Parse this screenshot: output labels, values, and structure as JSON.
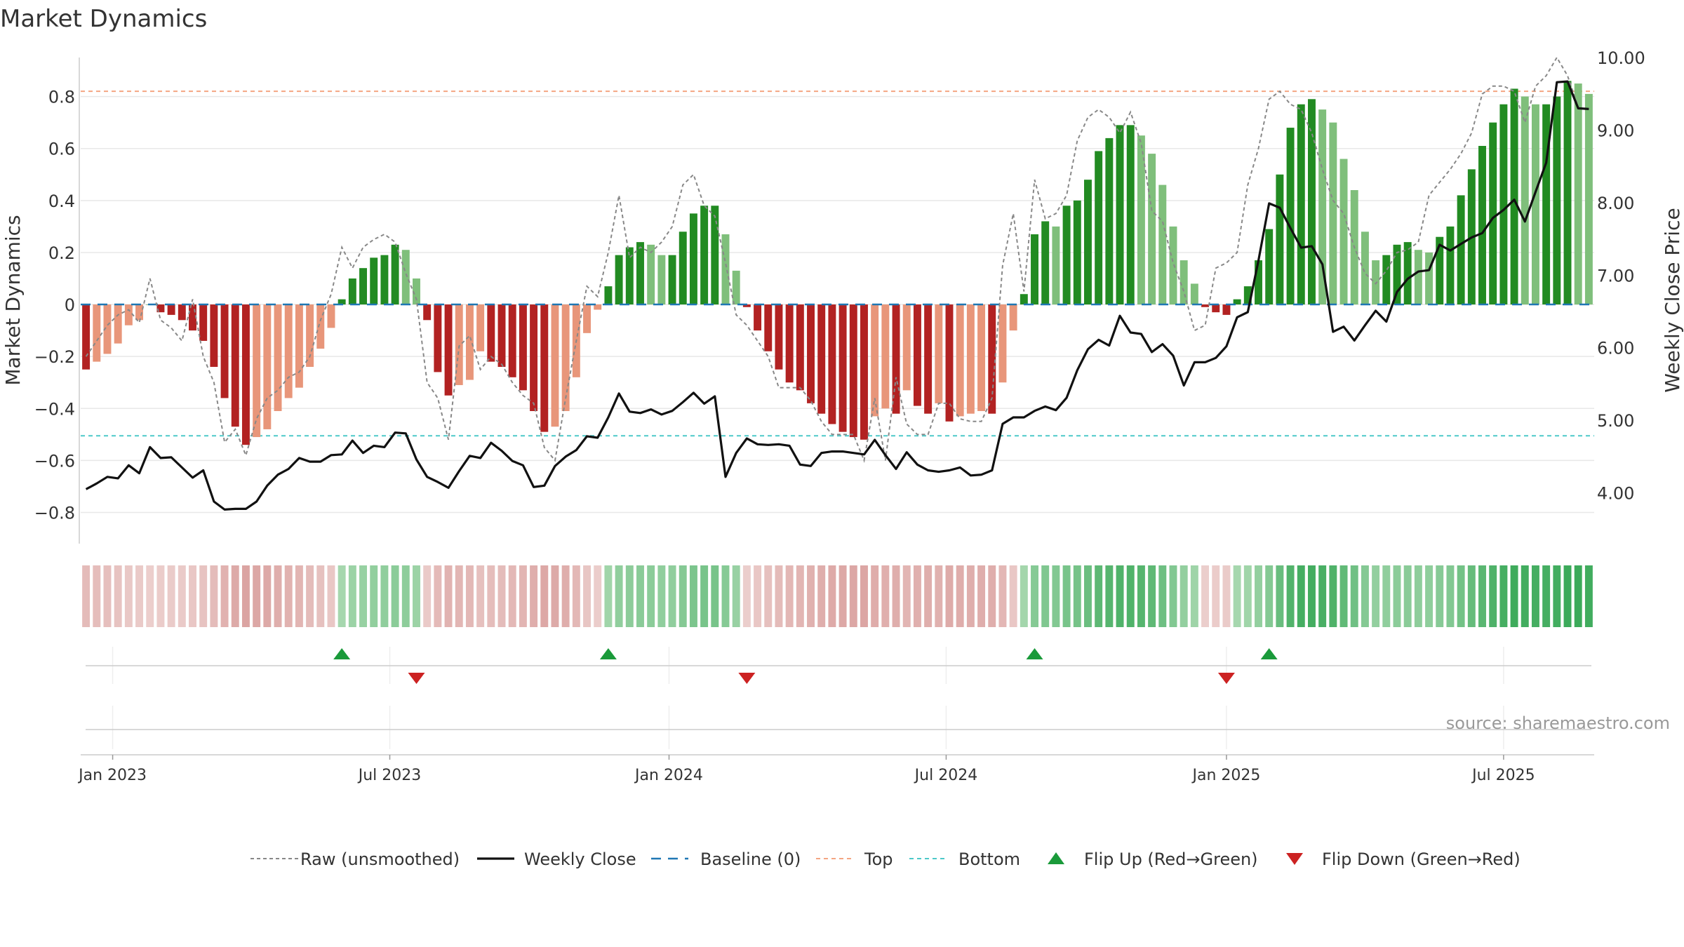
{
  "chart_data": {
    "type": "bar",
    "title": "Market Dynamics",
    "ylabel": "Market Dynamics",
    "y2label": "Weekly Close Price",
    "ylim": [
      -0.92,
      0.95
    ],
    "y2lim": [
      3.3,
      10.0
    ],
    "yticks": [
      {
        "v": 0.8,
        "label": "0.8"
      },
      {
        "v": 0.6,
        "label": "0.6"
      },
      {
        "v": 0.4,
        "label": "0.4"
      },
      {
        "v": 0.2,
        "label": "0.2"
      },
      {
        "v": 0.0,
        "label": "0"
      },
      {
        "v": -0.2,
        "label": "−0.2"
      },
      {
        "v": -0.4,
        "label": "−0.4"
      },
      {
        "v": -0.6,
        "label": "−0.6"
      },
      {
        "v": -0.8,
        "label": "−0.8"
      }
    ],
    "y2ticks": [
      {
        "v": 10.0,
        "label": "10.00"
      },
      {
        "v": 9.0,
        "label": "9.00"
      },
      {
        "v": 8.0,
        "label": "8.00"
      },
      {
        "v": 7.0,
        "label": "7.00"
      },
      {
        "v": 6.0,
        "label": "6.00"
      },
      {
        "v": 5.0,
        "label": "5.00"
      },
      {
        "v": 4.0,
        "label": "4.00"
      }
    ],
    "xticks": [
      {
        "i": 2.5,
        "label": "Jan 2023"
      },
      {
        "i": 28.5,
        "label": "Jul 2023"
      },
      {
        "i": 54.7,
        "label": "Jan 2024"
      },
      {
        "i": 80.7,
        "label": "Jul 2024"
      },
      {
        "i": 107,
        "label": "Jan 2025"
      },
      {
        "i": 133,
        "label": "Jul 2025"
      }
    ],
    "top_line": 0.82,
    "bottom_line": -0.505,
    "baseline": 0,
    "x_start": "2022-12-16",
    "frequency": "weekly",
    "smoothed": [
      -0.25,
      -0.22,
      -0.19,
      -0.15,
      -0.08,
      -0.06,
      0.0,
      -0.03,
      -0.04,
      -0.06,
      -0.1,
      -0.14,
      -0.24,
      -0.36,
      -0.47,
      -0.54,
      -0.51,
      -0.48,
      -0.41,
      -0.36,
      -0.32,
      -0.24,
      -0.17,
      -0.09,
      0.02,
      0.1,
      0.14,
      0.18,
      0.19,
      0.23,
      0.21,
      0.1,
      -0.06,
      -0.26,
      -0.35,
      -0.31,
      -0.29,
      -0.18,
      -0.22,
      -0.24,
      -0.28,
      -0.33,
      -0.41,
      -0.49,
      -0.47,
      -0.41,
      -0.28,
      -0.11,
      -0.02,
      0.07,
      0.19,
      0.22,
      0.24,
      0.23,
      0.19,
      0.19,
      0.28,
      0.35,
      0.38,
      0.38,
      0.27,
      0.13,
      -0.01,
      -0.1,
      -0.18,
      -0.25,
      -0.3,
      -0.33,
      -0.38,
      -0.42,
      -0.46,
      -0.49,
      -0.51,
      -0.52,
      -0.43,
      -0.4,
      -0.42,
      -0.33,
      -0.39,
      -0.42,
      -0.38,
      -0.45,
      -0.43,
      -0.42,
      -0.41,
      -0.42,
      -0.3,
      -0.1,
      0.04,
      0.27,
      0.32,
      0.3,
      0.38,
      0.4,
      0.48,
      0.59,
      0.64,
      0.69,
      0.69,
      0.65,
      0.58,
      0.46,
      0.3,
      0.17,
      0.08,
      -0.01,
      -0.03,
      -0.04,
      0.02,
      0.07,
      0.17,
      0.29,
      0.5,
      0.68,
      0.77,
      0.79,
      0.75,
      0.7,
      0.56,
      0.44,
      0.28,
      0.17,
      0.19,
      0.23,
      0.24,
      0.21,
      0.2,
      0.26,
      0.3,
      0.42,
      0.52,
      0.61,
      0.7,
      0.77,
      0.83,
      0.8,
      0.77,
      0.77,
      0.8,
      0.86,
      0.85,
      0.81
    ],
    "raw": [
      -0.2,
      -0.14,
      -0.08,
      -0.04,
      -0.02,
      -0.07,
      0.1,
      -0.06,
      -0.09,
      -0.14,
      0.02,
      -0.2,
      -0.3,
      -0.53,
      -0.48,
      -0.58,
      -0.44,
      -0.36,
      -0.33,
      -0.28,
      -0.26,
      -0.2,
      -0.06,
      0.04,
      0.22,
      0.14,
      0.22,
      0.25,
      0.27,
      0.24,
      0.12,
      0.02,
      -0.3,
      -0.36,
      -0.52,
      -0.16,
      -0.12,
      -0.25,
      -0.2,
      -0.23,
      -0.3,
      -0.35,
      -0.38,
      -0.55,
      -0.6,
      -0.36,
      -0.14,
      0.07,
      0.03,
      0.2,
      0.42,
      0.18,
      0.22,
      0.2,
      0.24,
      0.3,
      0.46,
      0.5,
      0.38,
      0.34,
      0.16,
      -0.04,
      -0.08,
      -0.14,
      -0.2,
      -0.32,
      -0.32,
      -0.32,
      -0.37,
      -0.45,
      -0.5,
      -0.5,
      -0.5,
      -0.6,
      -0.36,
      -0.6,
      -0.28,
      -0.46,
      -0.5,
      -0.5,
      -0.38,
      -0.38,
      -0.44,
      -0.45,
      -0.45,
      -0.36,
      0.15,
      0.35,
      0.05,
      0.48,
      0.33,
      0.35,
      0.42,
      0.63,
      0.72,
      0.75,
      0.72,
      0.66,
      0.74,
      0.62,
      0.36,
      0.32,
      0.16,
      0.05,
      -0.1,
      -0.08,
      0.14,
      0.16,
      0.2,
      0.46,
      0.6,
      0.79,
      0.82,
      0.77,
      0.75,
      0.66,
      0.52,
      0.4,
      0.35,
      0.22,
      0.12,
      0.08,
      0.13,
      0.2,
      0.21,
      0.24,
      0.42,
      0.47,
      0.52,
      0.58,
      0.66,
      0.81,
      0.84,
      0.84,
      0.82,
      0.7,
      0.84,
      0.88,
      0.95,
      0.88,
      0.76
    ],
    "price": [
      4.05,
      4.13,
      4.22,
      4.2,
      4.38,
      4.27,
      4.63,
      4.48,
      4.49,
      4.35,
      4.21,
      4.31,
      3.88,
      3.77,
      3.78,
      3.78,
      3.88,
      4.1,
      4.25,
      4.33,
      4.48,
      4.43,
      4.43,
      4.52,
      4.53,
      4.72,
      4.55,
      4.65,
      4.63,
      4.83,
      4.82,
      4.46,
      4.22,
      4.15,
      4.07,
      4.3,
      4.51,
      4.48,
      4.69,
      4.58,
      4.44,
      4.38,
      4.08,
      4.1,
      4.37,
      4.5,
      4.59,
      4.78,
      4.76,
      5.04,
      5.37,
      5.12,
      5.1,
      5.15,
      5.08,
      5.13,
      5.25,
      5.38,
      5.23,
      5.33,
      4.22,
      4.55,
      4.75,
      4.67,
      4.66,
      4.67,
      4.65,
      4.39,
      4.37,
      4.55,
      4.57,
      4.57,
      4.55,
      4.53,
      4.73,
      4.52,
      4.33,
      4.56,
      4.39,
      4.31,
      4.29,
      4.31,
      4.35,
      4.24,
      4.25,
      4.31,
      4.95,
      5.04,
      5.04,
      5.13,
      5.19,
      5.14,
      5.31,
      5.69,
      5.98,
      6.11,
      6.03,
      6.44,
      6.21,
      6.19,
      5.94,
      6.05,
      5.89,
      5.48,
      5.8,
      5.8,
      5.86,
      6.02,
      6.42,
      6.49,
      7.2,
      7.99,
      7.93,
      7.65,
      7.38,
      7.4,
      7.15,
      6.22,
      6.29,
      6.1,
      6.31,
      6.51,
      6.36,
      6.77,
      6.95,
      7.05,
      7.07,
      7.42,
      7.34,
      7.43,
      7.52,
      7.58,
      7.79,
      7.9,
      8.04,
      7.74,
      8.15,
      8.55,
      9.66,
      9.67,
      9.3,
      9.29
    ],
    "flip_up_index": [
      24,
      49,
      89,
      111
    ],
    "flip_down_index": [
      31,
      62,
      107
    ],
    "legend": [
      {
        "key": "raw",
        "label": "Raw (unsmoothed)"
      },
      {
        "key": "close",
        "label": "Weekly Close"
      },
      {
        "key": "baseline",
        "label": "Baseline (0)"
      },
      {
        "key": "top",
        "label": "Top"
      },
      {
        "key": "bottom",
        "label": "Bottom"
      },
      {
        "key": "flipup",
        "label": "Flip Up (Red→Green)"
      },
      {
        "key": "flipdown",
        "label": "Flip Down (Green→Red)"
      }
    ],
    "source": "source: sharemaestro.com",
    "colors": {
      "green_strong": "#228b22",
      "green_light": "#7fbf7b",
      "red_strong": "#b22222",
      "red_light": "#e8967a",
      "price": "#111111",
      "raw": "#888888",
      "top": "#f4a582",
      "bottom": "#4dc9c9",
      "baseline": "#1f77b4",
      "flip_up": "#1a9a3a",
      "flip_down": "#cc2222"
    }
  }
}
